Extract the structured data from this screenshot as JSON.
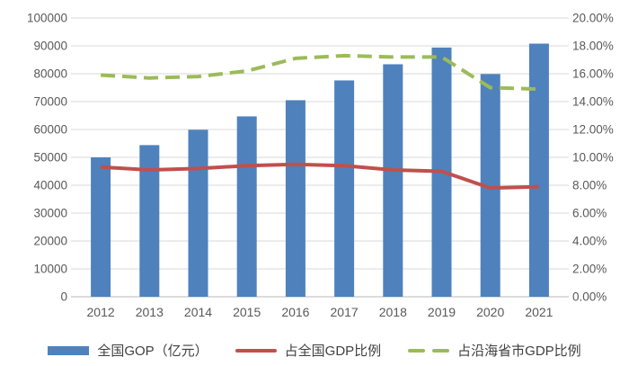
{
  "chart_data": {
    "type": "combo",
    "title": "",
    "categories": [
      "2012",
      "2013",
      "2014",
      "2015",
      "2016",
      "2017",
      "2018",
      "2019",
      "2020",
      "2021"
    ],
    "series": [
      {
        "name": "全国GOP（亿元）",
        "type": "bar",
        "axis": "left",
        "color": "#4F81BD",
        "values": [
          50000,
          54400,
          59900,
          64700,
          70500,
          77600,
          83400,
          89400,
          79900,
          90800
        ]
      },
      {
        "name": "占全国GDP比例",
        "type": "line",
        "style": "solid",
        "axis": "right",
        "color": "#C0504D",
        "values": [
          9.3,
          9.1,
          9.2,
          9.4,
          9.5,
          9.4,
          9.1,
          9.0,
          7.8,
          7.9
        ]
      },
      {
        "name": "占沿海省市GDP比例",
        "type": "line",
        "style": "dashed",
        "axis": "right",
        "color": "#9BBB59",
        "values": [
          15.9,
          15.7,
          15.8,
          16.2,
          17.1,
          17.3,
          17.2,
          17.2,
          15.0,
          14.9
        ]
      }
    ],
    "left_axis": {
      "min": 0,
      "max": 100000,
      "step": 10000,
      "tick_labels": [
        "0",
        "10000",
        "20000",
        "30000",
        "40000",
        "50000",
        "60000",
        "70000",
        "80000",
        "90000",
        "100000"
      ]
    },
    "right_axis": {
      "min": 0,
      "max": 20,
      "step": 2,
      "tick_labels": [
        "0.00%",
        "2.00%",
        "4.00%",
        "6.00%",
        "8.00%",
        "10.00%",
        "12.00%",
        "14.00%",
        "16.00%",
        "18.00%",
        "20.00%"
      ]
    },
    "grid": true,
    "legend_position": "bottom",
    "colors": {
      "grid": "#D9D9D9",
      "axis": "#C6C6C6",
      "tick_label": "#595959",
      "legend_text": "#404040",
      "background": "#FFFFFF"
    }
  }
}
